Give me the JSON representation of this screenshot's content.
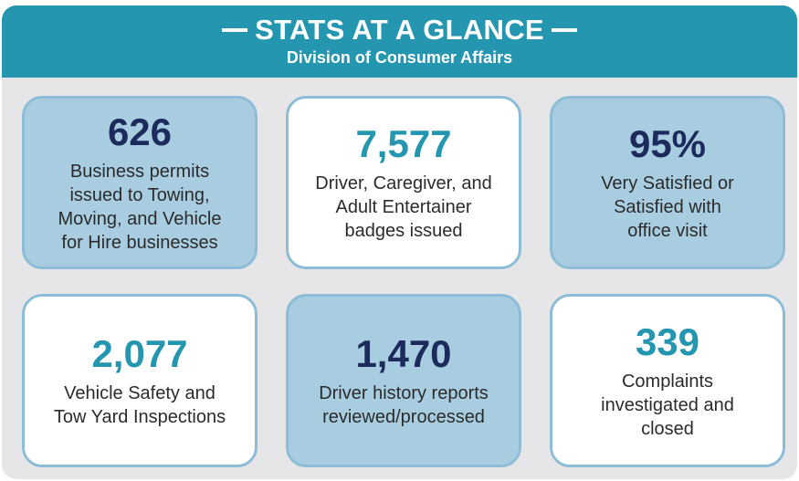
{
  "header": {
    "title": "STATS AT A GLANCE",
    "subtitle": "Division of Consumer Affairs"
  },
  "cards": [
    {
      "number": "626",
      "description": [
        "Business permits",
        "issued to Towing,",
        "Moving, and Vehicle",
        "for Hire businesses"
      ],
      "background": "#a9cde0",
      "number_color": "#1c2a5c"
    },
    {
      "number": "7,577",
      "description": [
        "Driver, Caregiver, and",
        "Adult Entertainer",
        "badges issued"
      ],
      "background": "#ffffff",
      "number_color": "#2596b0"
    },
    {
      "number": "95%",
      "description": [
        "Very Satisfied or",
        "Satisfied with",
        "office visit"
      ],
      "background": "#a9cde0",
      "number_color": "#1c2a5c"
    },
    {
      "number": "2,077",
      "description": [
        "Vehicle Safety and",
        "Tow Yard Inspections"
      ],
      "background": "#ffffff",
      "number_color": "#2596b0"
    },
    {
      "number": "1,470",
      "description": [
        "Driver history reports",
        "reviewed/processed"
      ],
      "background": "#a9cde0",
      "number_color": "#1c2a5c"
    },
    {
      "number": "339",
      "description": [
        "Complaints",
        "investigated and",
        "closed"
      ],
      "background": "#ffffff",
      "number_color": "#2596b0"
    }
  ]
}
